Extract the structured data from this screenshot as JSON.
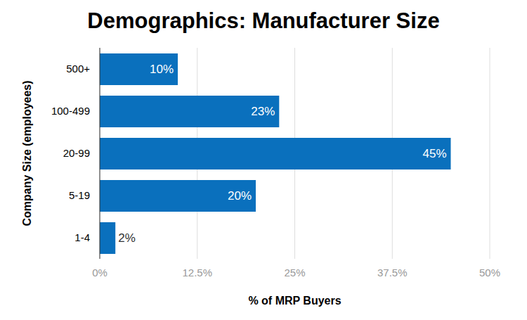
{
  "chart_data": {
    "type": "bar",
    "title": "Demographics: Manufacturer Size",
    "x_label": "% of MRP Buyers",
    "y_label": "Company Size (employees)",
    "orientation": "horizontal",
    "categories": [
      "500+",
      "100-499",
      "20-99",
      "5-19",
      "1-4"
    ],
    "values": [
      10,
      23,
      45,
      20,
      2
    ],
    "value_labels": [
      "10%",
      "23%",
      "45%",
      "20%",
      "2%"
    ],
    "data_labels": true,
    "color": "#0a70bd",
    "xlim": [
      0,
      50
    ],
    "xticks": [
      {
        "value": 0,
        "label": "0%"
      },
      {
        "value": 12.5,
        "label": "12.5%"
      },
      {
        "value": 25,
        "label": "25%"
      },
      {
        "value": 37.5,
        "label": "37.5%"
      },
      {
        "value": 50,
        "label": "50%"
      }
    ],
    "grid": true
  }
}
